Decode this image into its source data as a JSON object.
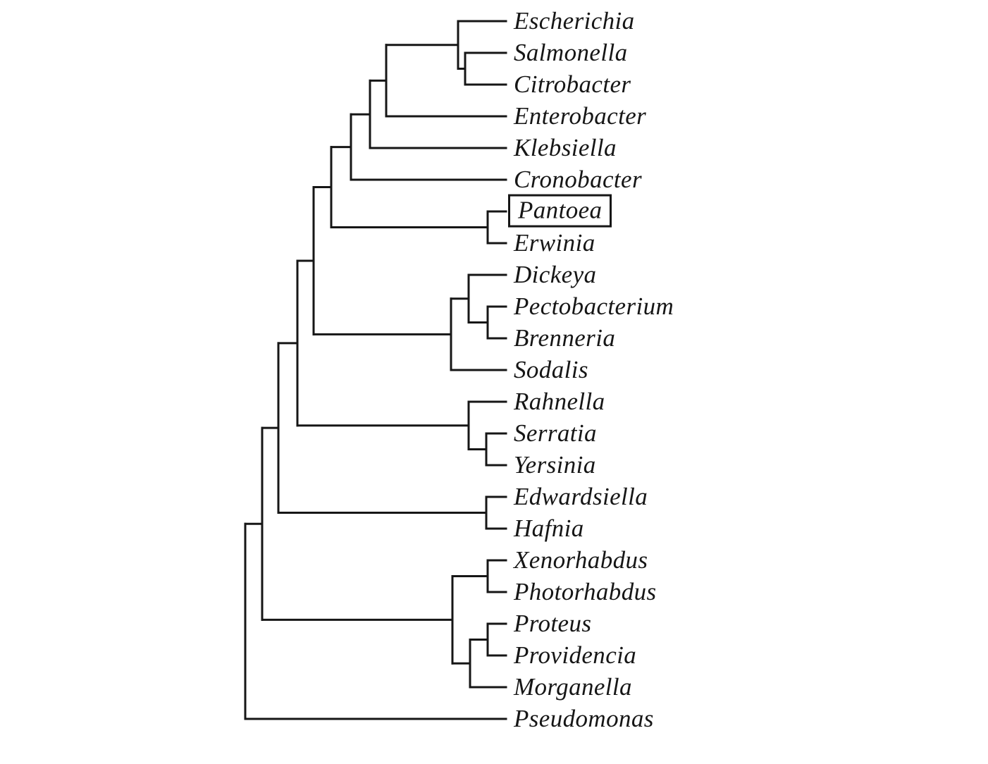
{
  "figure": {
    "type": "phylogenetic-cladogram",
    "highlighted_taxon": "Pantoea",
    "taxa": [
      "Escherichia",
      "Salmonella",
      "Citrobacter",
      "Enterobacter",
      "Klebsiella",
      "Cronobacter",
      "Pantoea",
      "Erwinia",
      "Dickeya",
      "Pectobacterium",
      "Brenneria",
      "Sodalis",
      "Rahnella",
      "Serratia",
      "Yersinia",
      "Edwardsiella",
      "Hafnia",
      "Xenorhabdus",
      "Photorhabdus",
      "Proteus",
      "Providencia",
      "Morganella",
      "Pseudomonas"
    ],
    "topology": [
      [
        [
          [
            [
              [
                [
                  [
                    [
                      [
                        "Escherichia",
                        [
                          "Salmonella",
                          "Citrobacter"
                        ]
                      ],
                      "Enterobacter"
                    ],
                    "Klebsiella"
                  ],
                  "Cronobacter"
                ],
                [
                  "Pantoea",
                  "Erwinia"
                ]
              ],
              [
                [
                  "Dickeya",
                  [
                    "Pectobacterium",
                    "Brenneria"
                  ]
                ],
                "Sodalis"
              ]
            ],
            [
              "Rahnella",
              [
                "Serratia",
                "Yersinia"
              ]
            ]
          ],
          [
            "Edwardsiella",
            "Hafnia"
          ]
        ],
        [
          [
            "Xenorhabdus",
            "Photorhabdus"
          ],
          [
            [
              "Proteus",
              "Providencia"
            ],
            "Morganella"
          ]
        ]
      ],
      "Pseudomonas"
    ],
    "colors": {
      "background": "#ffffff",
      "line": "#161616",
      "text": "#161616",
      "highlight_box_border": "#161616"
    }
  }
}
